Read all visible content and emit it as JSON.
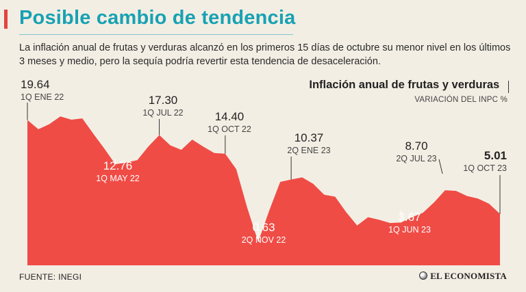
{
  "header": {
    "title": "Posible cambio de tendencia",
    "subtitle": "La inflación anual de frutas y verduras alcanzó en los primeros 15 días de octubre su menor nivel en los últimos 3 meses y medio, pero la sequía podría revertir esta tendencia de desaceleración."
  },
  "colors": {
    "accent": "#17a2b3",
    "area": "#ef4c46",
    "text": "#222222",
    "background": "#f3eee4"
  },
  "chart_data": {
    "type": "area",
    "title": "Inflación anual de frutas y verduras",
    "subtitle": "VARIACIÓN DEL INPC %",
    "xlabel": "",
    "ylabel": "",
    "ylim": [
      -3,
      23
    ],
    "values": [
      19.64,
      18.2,
      19.0,
      20.2,
      19.7,
      19.9,
      17.5,
      15.2,
      12.76,
      13.0,
      13.4,
      15.5,
      17.3,
      15.7,
      15.0,
      16.6,
      15.5,
      14.5,
      14.4,
      12.0,
      6.0,
      0.63,
      5.5,
      10.0,
      10.37,
      10.7,
      9.7,
      8.0,
      7.7,
      5.3,
      3.2,
      4.5,
      4.1,
      3.6,
      3.67,
      4.5,
      5.2,
      6.8,
      8.7,
      8.6,
      7.8,
      7.4,
      6.6,
      5.01
    ],
    "annotations": [
      {
        "index": 0,
        "value": "19.64",
        "label": "1Q ENE 22",
        "emphasis": false
      },
      {
        "index": 8,
        "value": "12.76",
        "label": "1Q MAY 22",
        "emphasis": false
      },
      {
        "index": 12,
        "value": "17.30",
        "label": "1Q JUL 22",
        "emphasis": false
      },
      {
        "index": 18,
        "value": "14.40",
        "label": "1Q OCT 22",
        "emphasis": false
      },
      {
        "index": 21,
        "value": "0.63",
        "label": "2Q NOV 22",
        "emphasis": false
      },
      {
        "index": 24,
        "value": "10.37",
        "label": "2Q ENE 23",
        "emphasis": false
      },
      {
        "index": 34,
        "value": "3.67",
        "label": "1Q JUN 23",
        "emphasis": false
      },
      {
        "index": 38,
        "value": "8.70",
        "label": "2Q JUL 23",
        "emphasis": false
      },
      {
        "index": 43,
        "value": "5.01",
        "label": "1Q OCT 23",
        "emphasis": true
      }
    ]
  },
  "footer": {
    "source": "FUENTE: INEGI",
    "brand": "EL ECONOMISTA"
  }
}
